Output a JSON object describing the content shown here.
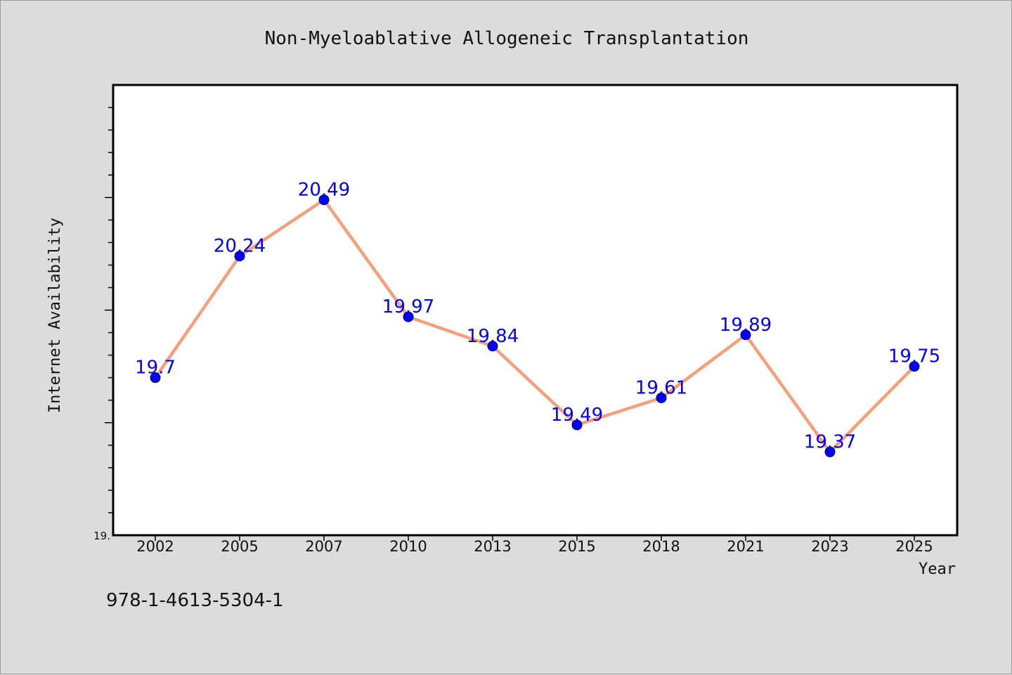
{
  "chart_data": {
    "type": "line",
    "title": "Non-Myeloablative Allogeneic Transplantation",
    "xlabel": "Year",
    "ylabel": "Internet Availability",
    "categories": [
      "2002",
      "2005",
      "2007",
      "2010",
      "2013",
      "2015",
      "2018",
      "2021",
      "2023",
      "2025"
    ],
    "series": [
      {
        "values": [
          19.7,
          20.24,
          20.49,
          19.97,
          19.84,
          19.49,
          19.61,
          19.89,
          19.37,
          19.75
        ],
        "data_labels": [
          "19.7",
          "20.24",
          "20.49",
          "19.97",
          "19.84",
          "19.49",
          "19.61",
          "19.89",
          "19.37",
          "19.75"
        ],
        "line_color": "#f4a07a",
        "marker_color": "#0000ff"
      }
    ],
    "ylim": [
      19.0,
      21.0
    ],
    "y_tick_labels": [
      {
        "value": 19.0,
        "label": "19."
      }
    ],
    "y_minor_step": 0.1,
    "y_major_step": 0.5,
    "grid": false,
    "legend": "none"
  },
  "footer": {
    "isbn": "978-1-4613-5304-1"
  },
  "colors": {
    "background": "#dcdcdc",
    "plot_background": "#ffffff",
    "axis": "#000000"
  }
}
